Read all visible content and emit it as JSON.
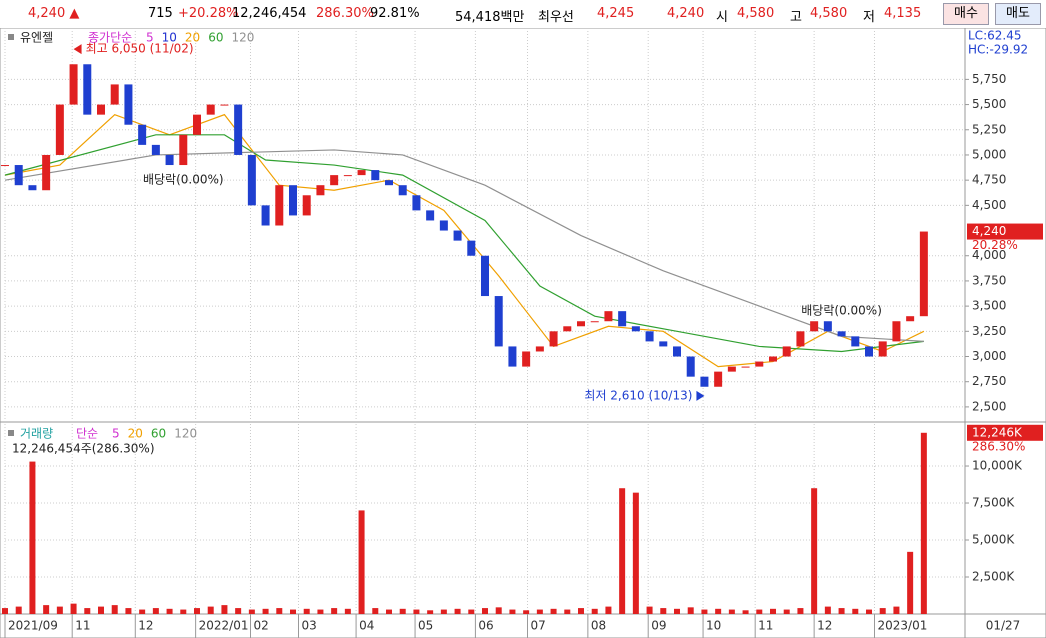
{
  "topbar": {
    "price": "4,240 ▲",
    "change": "715",
    "rate": "+20.28%",
    "volume": "12,246,454",
    "vol_ratio": "286.30%",
    "turnover": "92.81%",
    "amount": "54,418백만",
    "best_label": "최우선",
    "ask": "4,245",
    "bid": "4,240",
    "open_label": "시",
    "open": "4,580",
    "high_label": "고",
    "high": "4,580",
    "low_label": "저",
    "low": "4,135",
    "buy": "매수",
    "sell": "매도"
  },
  "chart_data": [
    {
      "type": "candlestick",
      "title": "유엔젤",
      "ma_label": "종가단순",
      "lc": "LC:62.45",
      "hc": "HC:-29.92",
      "up_color": "#e02020",
      "down_color": "#1f3fd0",
      "values": [
        4900,
        4700,
        4650,
        5000,
        5500,
        5900,
        5400,
        5500,
        5700,
        5300,
        5100,
        5000,
        4900,
        5200,
        5400,
        5500,
        5500,
        5000,
        4500,
        4300,
        4700,
        4400,
        4600,
        4700,
        4800,
        4800,
        4850,
        4750,
        4700,
        4600,
        4450,
        4350,
        4250,
        4150,
        4000,
        3600,
        3100,
        2900,
        3050,
        3100,
        3250,
        3300,
        3350,
        3350,
        3450,
        3300,
        3250,
        3150,
        3100,
        3000,
        2800,
        2700,
        2850,
        2900,
        2900,
        2950,
        3000,
        3100,
        3250,
        3350,
        3250,
        3200,
        3100,
        3000,
        3150,
        3350,
        3400,
        4240
      ],
      "series": [
        {
          "name": "5",
          "color": "#d030d0"
        },
        {
          "name": "10",
          "color": "#2030d0"
        },
        {
          "name": "20",
          "color": "#f0a000",
          "x": [
            0,
            4,
            8,
            12,
            16,
            20,
            24,
            28,
            32,
            36,
            40,
            44,
            48,
            52,
            56,
            60,
            64,
            67
          ],
          "values": [
            4800,
            4900,
            5400,
            5200,
            5400,
            4700,
            4650,
            4750,
            4450,
            3800,
            3100,
            3300,
            3250,
            2900,
            2950,
            3250,
            3050,
            3250
          ]
        },
        {
          "name": "60",
          "color": "#30a030",
          "x": [
            0,
            11,
            16,
            19,
            24,
            29,
            35,
            39,
            43,
            49,
            55,
            61,
            67
          ],
          "values": [
            4800,
            5200,
            5200,
            4950,
            4900,
            4800,
            4350,
            3700,
            3400,
            3250,
            3100,
            3050,
            3150
          ]
        },
        {
          "name": "120",
          "color": "#909090",
          "x": [
            0,
            11,
            24,
            29,
            35,
            42,
            48,
            55,
            61,
            67
          ],
          "values": [
            4750,
            5000,
            5050,
            5000,
            4700,
            4200,
            3850,
            3500,
            3200,
            3150
          ]
        }
      ],
      "annotations": [
        {
          "text": "최고 6,050 (11/02)",
          "x": 5,
          "y": 6050,
          "arrow": "left",
          "color": "#e02020"
        },
        {
          "text": "최저 2,610 (10/13)",
          "x": 51,
          "y": 2610,
          "arrow": "right",
          "color": "#1f3fd0"
        },
        {
          "text": "배당락(0.00%)",
          "x": 13,
          "y": 4750
        },
        {
          "text": "배당락(0.00%)",
          "x": 61,
          "y": 3450
        }
      ],
      "current": {
        "value": 4240,
        "label": "4,240",
        "rate": "20.28%"
      },
      "ylim": [
        2370,
        6240
      ],
      "yticks": [
        {
          "value": 2500,
          "label": "2,500"
        },
        {
          "value": 2750,
          "label": "2,750"
        },
        {
          "value": 3000,
          "label": "3,000"
        },
        {
          "value": 3250,
          "label": "3,250"
        },
        {
          "value": 3500,
          "label": "3,500"
        },
        {
          "value": 3750,
          "label": "3,750"
        },
        {
          "value": 4000,
          "label": "4,000"
        },
        {
          "value": 4500,
          "label": "4,500"
        },
        {
          "value": 4750,
          "label": "4,750"
        },
        {
          "value": 5000,
          "label": "5,000"
        },
        {
          "value": 5250,
          "label": "5,250"
        },
        {
          "value": 5500,
          "label": "5,500"
        },
        {
          "value": 5750,
          "label": "5,750"
        }
      ],
      "grid": true
    },
    {
      "type": "bar",
      "title": "거래량",
      "ma_label": "단순",
      "summary": "12,246,454주(286.30%)",
      "color": "#e02020",
      "series": [
        {
          "name": "5",
          "color": "#d030d0"
        },
        {
          "name": "20",
          "color": "#f0a000"
        },
        {
          "name": "60",
          "color": "#30a030"
        },
        {
          "name": "120",
          "color": "#909090"
        }
      ],
      "values": [
        400,
        500,
        10300,
        600,
        500,
        700,
        400,
        500,
        600,
        400,
        300,
        400,
        350,
        300,
        400,
        500,
        600,
        400,
        300,
        350,
        400,
        300,
        350,
        300,
        400,
        350,
        7000,
        400,
        300,
        350,
        300,
        250,
        300,
        350,
        300,
        400,
        450,
        300,
        250,
        300,
        350,
        300,
        400,
        350,
        500,
        8500,
        8200,
        500,
        400,
        350,
        450,
        300,
        350,
        300,
        250,
        300,
        350,
        300,
        400,
        8500,
        500,
        400,
        350,
        300,
        400,
        500,
        4200,
        12246
      ],
      "current": {
        "value": 12246,
        "label": "12,246K",
        "rate": "286.30%"
      },
      "ylim": [
        0,
        12840
      ],
      "yticks": [
        {
          "value": 2500,
          "label": "2,500K"
        },
        {
          "value": 5000,
          "label": "5,000K"
        },
        {
          "value": 7500,
          "label": "7,500K"
        },
        {
          "value": 10000,
          "label": "10,000K"
        }
      ],
      "xlim": [
        0,
        70
      ],
      "xticks": [
        {
          "value": 0,
          "label": "2021/09"
        },
        {
          "value": 4.9,
          "label": "11"
        },
        {
          "value": 9.5,
          "label": "12"
        },
        {
          "value": 13.9,
          "label": "2022/01"
        },
        {
          "value": 17.9,
          "label": "02"
        },
        {
          "value": 21.4,
          "label": "03"
        },
        {
          "value": 25.6,
          "label": "04"
        },
        {
          "value": 29.9,
          "label": "05"
        },
        {
          "value": 34.3,
          "label": "06"
        },
        {
          "value": 38.1,
          "label": "07"
        },
        {
          "value": 42.5,
          "label": "08"
        },
        {
          "value": 46.9,
          "label": "09"
        },
        {
          "value": 50.9,
          "label": "10"
        },
        {
          "value": 54.7,
          "label": "11"
        },
        {
          "value": 59.0,
          "label": "12"
        },
        {
          "value": 63.4,
          "label": "2023/01"
        }
      ],
      "last_date": "01/27",
      "grid": true
    }
  ]
}
